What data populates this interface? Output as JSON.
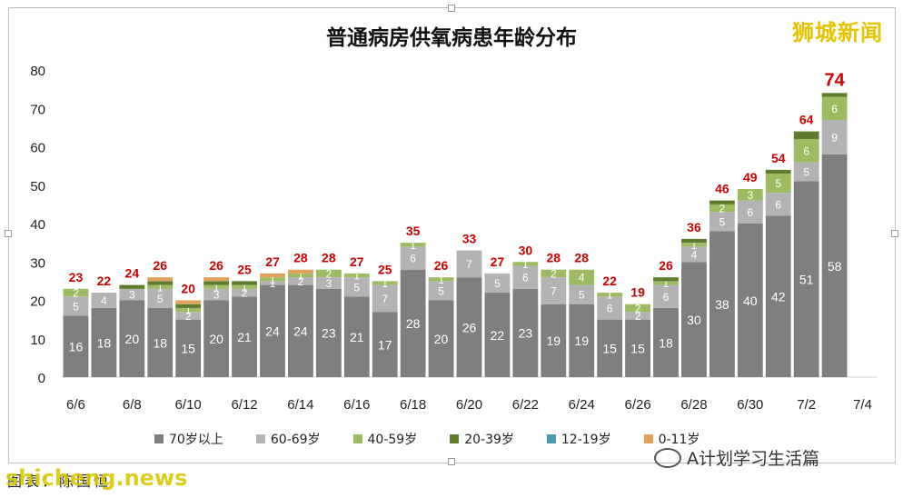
{
  "title": "普通病房供氧病患年龄分布",
  "watermark_top": "狮城新闻",
  "watermark_bottom": "shicheng.news",
  "wechat_account": "A计划学习生活篇",
  "source_label": "图表：陈国恒",
  "colors": {
    "70+": "#7f7f7f",
    "60-69": "#b3b3b3",
    "40-59": "#9dbb61",
    "20-39": "#5e7c2e",
    "12-19": "#4a9bb0",
    "0-11": "#e2a25c",
    "total_label": "#cc0000"
  },
  "chart_data": {
    "type": "bar",
    "stacked": true,
    "title": "普通病房供氧病患年龄分布",
    "ylim": [
      0,
      80
    ],
    "yticks": [
      0,
      10,
      20,
      30,
      40,
      50,
      60,
      70,
      80
    ],
    "grid": false,
    "legend_position": "bottom",
    "categories": [
      "6/6",
      "6/7",
      "6/8",
      "6/9",
      "6/10",
      "6/11",
      "6/12",
      "6/13",
      "6/14",
      "6/15",
      "6/16",
      "6/17",
      "6/18",
      "6/19",
      "6/20",
      "6/21",
      "6/22",
      "6/23",
      "6/24",
      "6/25",
      "6/26",
      "6/27",
      "6/28",
      "6/29",
      "6/30",
      "7/1",
      "7/2",
      "7/3",
      "7/4"
    ],
    "xtick_labels": [
      "6/6",
      "",
      "6/8",
      "",
      "6/10",
      "",
      "6/12",
      "",
      "6/14",
      "",
      "6/16",
      "",
      "6/18",
      "",
      "6/20",
      "",
      "6/22",
      "",
      "6/24",
      "",
      "6/26",
      "",
      "6/28",
      "",
      "6/30",
      "",
      "7/2",
      "",
      "7/4"
    ],
    "series": [
      {
        "name": "70岁以上",
        "key": "70+",
        "values": [
          16,
          18,
          20,
          18,
          15,
          20,
          21,
          24,
          24,
          23,
          21,
          17,
          28,
          20,
          26,
          22,
          23,
          19,
          19,
          15,
          15,
          18,
          30,
          38,
          40,
          42,
          51,
          58,
          0
        ]
      },
      {
        "name": "60-69岁",
        "key": "60-69",
        "values": [
          5,
          4,
          3,
          5,
          2,
          3,
          2,
          1,
          2,
          3,
          5,
          7,
          6,
          5,
          7,
          5,
          6,
          7,
          5,
          6,
          2,
          6,
          4,
          5,
          6,
          6,
          5,
          9,
          0
        ]
      },
      {
        "name": "40-59岁",
        "key": "40-59",
        "values": [
          2,
          0,
          0,
          1,
          1,
          1,
          1,
          1,
          1,
          2,
          1,
          1,
          1,
          1,
          0,
          0,
          1,
          2,
          4,
          1,
          2,
          1,
          1,
          2,
          3,
          5,
          6,
          6,
          0
        ]
      },
      {
        "name": "20-39岁",
        "key": "20-39",
        "values": [
          0,
          0,
          1,
          1,
          1,
          1,
          1,
          0,
          0,
          0,
          0,
          0,
          0,
          0,
          0,
          0,
          0,
          0,
          0,
          0,
          0,
          1,
          1,
          1,
          0,
          1,
          2,
          1,
          0
        ]
      },
      {
        "name": "12-19岁",
        "key": "12-19",
        "values": [
          0,
          0,
          0,
          0,
          0,
          0,
          0,
          0,
          0,
          0,
          0,
          0,
          0,
          0,
          0,
          0,
          0,
          0,
          0,
          0,
          0,
          0,
          0,
          0,
          0,
          0,
          0,
          0,
          0
        ]
      },
      {
        "name": "0-11岁",
        "key": "0-11",
        "values": [
          0,
          0,
          0,
          1,
          1,
          1,
          0,
          1,
          1,
          0,
          0,
          0,
          0,
          0,
          0,
          0,
          0,
          0,
          0,
          0,
          0,
          0,
          0,
          0,
          0,
          0,
          0,
          0,
          0
        ]
      }
    ],
    "totals": [
      23,
      22,
      24,
      26,
      20,
      26,
      25,
      27,
      28,
      28,
      27,
      25,
      35,
      26,
      33,
      27,
      30,
      28,
      28,
      22,
      19,
      26,
      36,
      46,
      49,
      54,
      64,
      74,
      null
    ]
  }
}
